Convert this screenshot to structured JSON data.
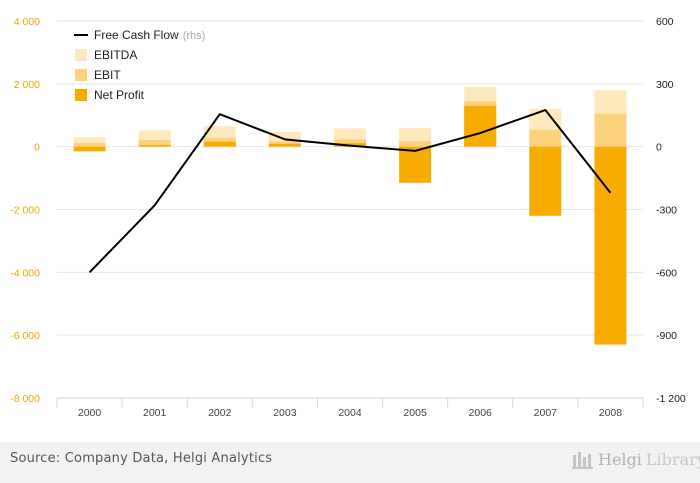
{
  "colors": {
    "ebitda": "#fde9bd",
    "ebit": "#fcd27e",
    "net_profit": "#f8ac00",
    "free_cash_flow": "#000000",
    "left_axis_text": "#f0a400",
    "right_axis_text": "#222222",
    "grid": "#e6e6e6"
  },
  "chart_data": {
    "type": "bar",
    "categories": [
      "2000",
      "2001",
      "2002",
      "2003",
      "2004",
      "2005",
      "2006",
      "2007",
      "2008"
    ],
    "series": [
      {
        "name": "EBITDA",
        "kind": "bar",
        "axis": "left",
        "values": [
          300,
          520,
          650,
          470,
          580,
          600,
          1900,
          1200,
          1800
        ]
      },
      {
        "name": "EBIT",
        "kind": "bar",
        "axis": "left",
        "values": [
          110,
          210,
          280,
          170,
          230,
          170,
          1450,
          540,
          1050
        ]
      },
      {
        "name": "Net Profit",
        "kind": "bar",
        "axis": "left",
        "values": [
          -150,
          50,
          160,
          90,
          110,
          -1150,
          1300,
          -2200,
          -6300
        ]
      },
      {
        "name": "Free Cash Flow",
        "kind": "line",
        "axis": "right",
        "values": [
          -600,
          -280,
          155,
          35,
          5,
          -20,
          65,
          175,
          -220
        ]
      }
    ],
    "y_left": {
      "min": -8000,
      "max": 4000,
      "ticks": [
        "4 000",
        "2 000",
        "0",
        "-2 000",
        "-4 000",
        "-6 000",
        "-8 000"
      ],
      "tick_values": [
        4000,
        2000,
        0,
        -2000,
        -4000,
        -6000,
        -8000
      ]
    },
    "y_right": {
      "min": -1200,
      "max": 600,
      "ticks": [
        "600",
        "300",
        "0",
        "-300",
        "-600",
        "-900",
        "-1 200"
      ],
      "tick_values": [
        600,
        300,
        0,
        -300,
        -600,
        -900,
        -1200
      ]
    },
    "legend": [
      {
        "label": "Free Cash Flow",
        "suffix": "(rhs)",
        "kind": "line",
        "color_key": "free_cash_flow"
      },
      {
        "label": "EBITDA",
        "kind": "box",
        "color_key": "ebitda"
      },
      {
        "label": "EBIT",
        "kind": "box",
        "color_key": "ebit"
      },
      {
        "label": "Net Profit",
        "kind": "box",
        "color_key": "net_profit"
      }
    ],
    "legend_position": "top-left",
    "grid": true
  },
  "footer": {
    "source": "Source: Company Data, Helgi Analytics",
    "brand_a": "Helgi",
    "brand_b": "Library"
  }
}
